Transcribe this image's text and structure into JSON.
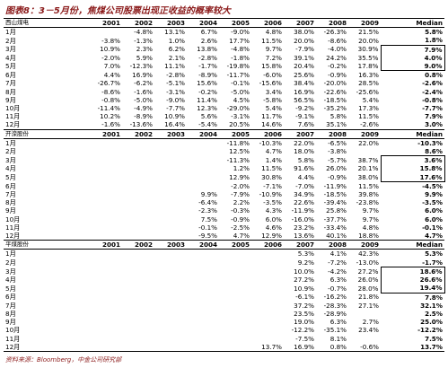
{
  "title": "图表8：3－5月份，焦煤公司股票出现正收益的概率较大",
  "source": "资料来源：Bloomberg，中金公司研究部",
  "table": {
    "columns": [
      "2001",
      "2002",
      "2003",
      "2004",
      "2005",
      "2006",
      "2007",
      "2008",
      "2009",
      "Median"
    ],
    "sections": [
      {
        "label": "西山煤电",
        "rows": [
          {
            "month": "1月",
            "cells": [
              null,
              "-4.8%",
              "13.1%",
              "6.7%",
              "-9.0%",
              "4.8%",
              "38.0%",
              "-26.3%",
              "21.5%",
              "5.8%"
            ]
          },
          {
            "month": "2月",
            "cells": [
              "-3.8%",
              "-1.3%",
              "1.0%",
              "2.6%",
              "17.7%",
              "11.5%",
              "20.0%",
              "-8.6%",
              "20.0%",
              "1.8%"
            ]
          },
          {
            "month": "3月",
            "cells": [
              "10.9%",
              "2.3%",
              "6.2%",
              "13.8%",
              "-4.8%",
              "9.7%",
              "-7.9%",
              "-4.0%",
              "30.9%",
              "7.9%"
            ]
          },
          {
            "month": "4月",
            "cells": [
              "-2.0%",
              "5.9%",
              "2.1%",
              "-2.8%",
              "-1.8%",
              "7.2%",
              "39.1%",
              "24.2%",
              "35.5%",
              "4.0%"
            ]
          },
          {
            "month": "5月",
            "cells": [
              "7.0%",
              "-12.3%",
              "11.1%",
              "-1.7%",
              "-19.8%",
              "15.8%",
              "20.4%",
              "-0.2%",
              "17.8%",
              "9.0%"
            ]
          },
          {
            "month": "6月",
            "cells": [
              "4.4%",
              "16.9%",
              "-2.8%",
              "-8.9%",
              "-11.7%",
              "-6.0%",
              "25.6%",
              "-0.9%",
              "16.3%",
              "0.8%"
            ]
          },
          {
            "month": "7月",
            "cells": [
              "-26.7%",
              "-6.2%",
              "-5.1%",
              "15.6%",
              "-0.1%",
              "-15.6%",
              "38.4%",
              "-20.0%",
              "28.5%",
              "-2.6%"
            ]
          },
          {
            "month": "8月",
            "cells": [
              "-8.6%",
              "-1.6%",
              "-3.1%",
              "-0.2%",
              "-5.0%",
              "3.4%",
              "16.9%",
              "-22.6%",
              "-25.6%",
              "-2.4%"
            ]
          },
          {
            "month": "9月",
            "cells": [
              "-0.8%",
              "-5.0%",
              "-9.0%",
              "11.4%",
              "4.5%",
              "-5.8%",
              "56.5%",
              "-18.5%",
              "5.4%",
              "-0.8%"
            ]
          },
          {
            "month": "10月",
            "cells": [
              "-11.4%",
              "-4.9%",
              "-7.7%",
              "12.3%",
              "-29.0%",
              "5.4%",
              "-9.2%",
              "-35.2%",
              "17.3%",
              "-7.7%"
            ]
          },
          {
            "month": "11月",
            "cells": [
              "10.2%",
              "-8.9%",
              "10.9%",
              "5.6%",
              "-3.1%",
              "11.7%",
              "-9.1%",
              "5.8%",
              "11.5%",
              "7.9%"
            ]
          },
          {
            "month": "12月",
            "cells": [
              "-1.6%",
              "-13.6%",
              "16.4%",
              "-5.4%",
              "20.5%",
              "14.6%",
              "7.6%",
              "35.1%",
              "-2.6%",
              "3.0%"
            ]
          }
        ]
      },
      {
        "label": "开滦股份",
        "rows": [
          {
            "month": "1月",
            "cells": [
              null,
              null,
              null,
              null,
              "-11.8%",
              "-10.3%",
              "22.0%",
              "-6.5%",
              "22.0%",
              "-10.3%"
            ]
          },
          {
            "month": "2月",
            "cells": [
              null,
              null,
              null,
              null,
              "12.5%",
              "4.7%",
              "18.0%",
              "-3.8%",
              null,
              "8.6%"
            ]
          },
          {
            "month": "3月",
            "cells": [
              null,
              null,
              null,
              null,
              "-11.3%",
              "1.4%",
              "5.8%",
              "-5.7%",
              "38.7%",
              "3.6%"
            ]
          },
          {
            "month": "4月",
            "cells": [
              null,
              null,
              null,
              null,
              "1.2%",
              "11.5%",
              "91.6%",
              "26.0%",
              "20.1%",
              "15.8%"
            ]
          },
          {
            "month": "5月",
            "cells": [
              null,
              null,
              null,
              null,
              "12.9%",
              "30.8%",
              "4.4%",
              "-0.9%",
              "38.0%",
              "17.6%"
            ]
          },
          {
            "month": "6月",
            "cells": [
              null,
              null,
              null,
              null,
              "-2.0%",
              "-7.1%",
              "-7.0%",
              "-11.9%",
              "11.5%",
              "-4.5%"
            ]
          },
          {
            "month": "7月",
            "cells": [
              null,
              null,
              null,
              "9.9%",
              "-7.9%",
              "-10.9%",
              "34.9%",
              "-18.5%",
              "39.8%",
              "9.9%"
            ]
          },
          {
            "month": "8月",
            "cells": [
              null,
              null,
              null,
              "-6.4%",
              "2.2%",
              "-3.5%",
              "22.6%",
              "-39.4%",
              "-23.8%",
              "-3.5%"
            ]
          },
          {
            "month": "9月",
            "cells": [
              null,
              null,
              null,
              "-2.3%",
              "-0.3%",
              "4.3%",
              "-11.9%",
              "25.8%",
              "9.7%",
              "6.0%"
            ]
          },
          {
            "month": "10月",
            "cells": [
              null,
              null,
              null,
              "7.5%",
              "-0.9%",
              "6.0%",
              "-16.0%",
              "-37.7%",
              "9.7%",
              "6.0%"
            ]
          },
          {
            "month": "11月",
            "cells": [
              null,
              null,
              null,
              "-0.1%",
              "-2.5%",
              "4.6%",
              "23.2%",
              "-33.4%",
              "4.8%",
              "-0.1%"
            ]
          },
          {
            "month": "12月",
            "cells": [
              null,
              null,
              null,
              "-9.5%",
              "4.7%",
              "12.9%",
              "13.6%",
              "40.1%",
              "18.8%",
              "4.7%"
            ]
          }
        ]
      },
      {
        "label": "平煤股份",
        "rows": [
          {
            "month": "1月",
            "cells": [
              null,
              null,
              null,
              null,
              null,
              null,
              "5.3%",
              "4.1%",
              "42.3%",
              "5.3%"
            ]
          },
          {
            "month": "2月",
            "cells": [
              null,
              null,
              null,
              null,
              null,
              null,
              "9.2%",
              "-7.2%",
              "-13.0%",
              "-1.7%"
            ]
          },
          {
            "month": "3月",
            "cells": [
              null,
              null,
              null,
              null,
              null,
              null,
              "10.0%",
              "-4.2%",
              "27.2%",
              "18.6%"
            ]
          },
          {
            "month": "4月",
            "cells": [
              null,
              null,
              null,
              null,
              null,
              null,
              "27.2%",
              "6.3%",
              "26.0%",
              "26.6%"
            ]
          },
          {
            "month": "5月",
            "cells": [
              null,
              null,
              null,
              null,
              null,
              null,
              "10.9%",
              "-0.7%",
              "28.0%",
              "19.4%"
            ]
          },
          {
            "month": "6月",
            "cells": [
              null,
              null,
              null,
              null,
              null,
              null,
              "-6.1%",
              "-16.2%",
              "21.8%",
              "7.8%"
            ]
          },
          {
            "month": "7月",
            "cells": [
              null,
              null,
              null,
              null,
              null,
              null,
              "37.2%",
              "-28.3%",
              "27.1%",
              "32.1%"
            ]
          },
          {
            "month": "8月",
            "cells": [
              null,
              null,
              null,
              null,
              null,
              null,
              "23.5%",
              "-28.9%",
              null,
              "2.5%"
            ]
          },
          {
            "month": "9月",
            "cells": [
              null,
              null,
              null,
              null,
              null,
              null,
              "19.0%",
              "6.3%",
              "2.7%",
              "25.0%"
            ]
          },
          {
            "month": "10月",
            "cells": [
              null,
              null,
              null,
              null,
              null,
              null,
              "-12.2%",
              "-35.1%",
              "23.4%",
              "-12.2%"
            ]
          },
          {
            "month": "11月",
            "cells": [
              null,
              null,
              null,
              null,
              null,
              null,
              "-7.5%",
              "8.1%",
              null,
              "7.5%"
            ]
          },
          {
            "month": "12月",
            "cells": [
              null,
              null,
              null,
              null,
              null,
              "13.7%",
              "16.9%",
              "0.8%",
              "-0.6%",
              "13.7%"
            ]
          }
        ]
      }
    ]
  }
}
